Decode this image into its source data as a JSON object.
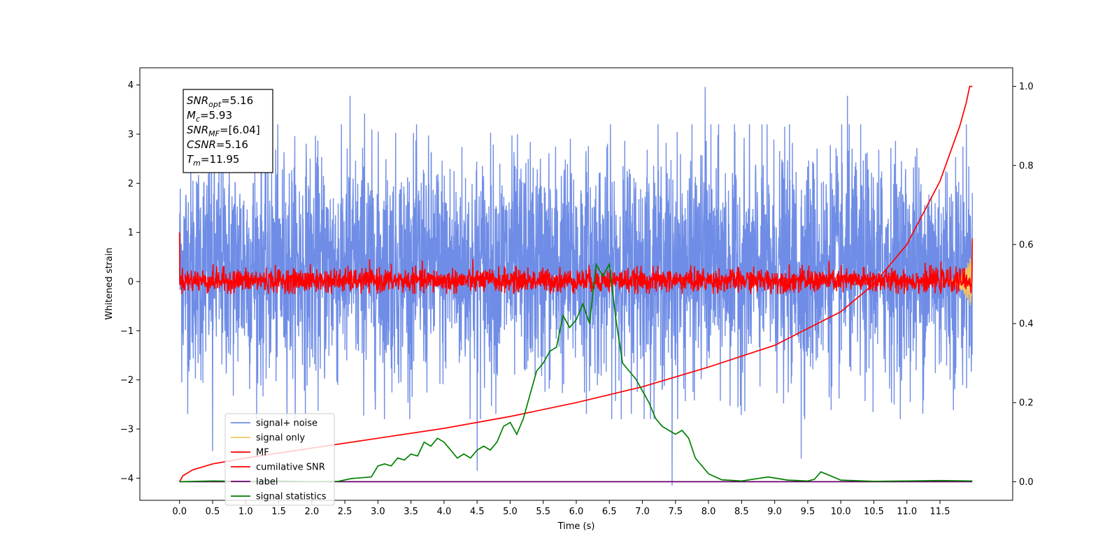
{
  "chart_data": {
    "type": "line",
    "title": "",
    "xlabel": "Time (s)",
    "ylabel": "Whitened strain",
    "xlim": [
      -0.6,
      12.6
    ],
    "ylim_left": [
      -4.45,
      4.35
    ],
    "ylim_right": [
      -0.047,
      1.047
    ],
    "x_ticks": [
      0.0,
      0.5,
      1.0,
      1.5,
      2.0,
      2.5,
      3.0,
      3.5,
      4.0,
      4.5,
      5.0,
      5.5,
      6.0,
      6.5,
      7.0,
      7.5,
      8.0,
      8.5,
      9.0,
      9.5,
      10.0,
      10.5,
      11.0,
      11.5
    ],
    "x_tick_labels": [
      "0.0",
      "0.5",
      "1.0",
      "1.5",
      "2.0",
      "2.5",
      "3.0",
      "3.5",
      "4.0",
      "4.5",
      "5.0",
      "5.5",
      "6.0",
      "6.5",
      "7.0",
      "7.5",
      "8.0",
      "8.5",
      "9.0",
      "9.5",
      "10.0",
      "10.5",
      "11.0",
      "11.5"
    ],
    "y_left_ticks": [
      -4,
      -3,
      -2,
      -1,
      0,
      1,
      2,
      3,
      4
    ],
    "y_left_tick_labels": [
      "−4",
      "−3",
      "−2",
      "−1",
      "0",
      "1",
      "2",
      "3",
      "4"
    ],
    "y_right_ticks": [
      0.0,
      0.2,
      0.4,
      0.6,
      0.8,
      1.0
    ],
    "y_right_tick_labels": [
      "0.0",
      "0.2",
      "0.4",
      "0.6",
      "0.8",
      "1.0"
    ],
    "legend_position": "bottom-left",
    "stats_box": {
      "lines": [
        {
          "sym": "SNR",
          "sub": "opt",
          "val": "=5.16"
        },
        {
          "sym": "M",
          "sub": "c",
          "val": "=5.93"
        },
        {
          "sym": "SNR",
          "sub": "MF",
          "val": "=[6.04]"
        },
        {
          "sym": "CSNR",
          "sub": "",
          "val": "=5.16"
        },
        {
          "sym": "T",
          "sub": "m",
          "val": "=11.95"
        }
      ]
    },
    "series": [
      {
        "name": "signal+ noise",
        "axis": "left",
        "color": "#6f8de6",
        "kind": "noise",
        "x_range": [
          0.0,
          11.99
        ],
        "mean": 0.0,
        "typical_envelope": [
          -2.2,
          2.6
        ],
        "peaks": [
          {
            "x": 2.58,
            "y": 3.78
          },
          {
            "x": 2.8,
            "y": 3.42
          },
          {
            "x": 7.95,
            "y": 3.96
          },
          {
            "x": 10.1,
            "y": 3.78
          },
          {
            "x": 0.5,
            "y": -3.45
          },
          {
            "x": 4.5,
            "y": -3.85
          },
          {
            "x": 7.45,
            "y": -4.15
          },
          {
            "x": 9.4,
            "y": -3.6
          }
        ]
      },
      {
        "name": "signal only",
        "axis": "left",
        "color": "#f5c462",
        "kind": "chirp",
        "x_range": [
          11.5,
          11.99
        ],
        "amplitude_end": 0.6
      },
      {
        "name": "MF",
        "axis": "left",
        "color": "#ff0000",
        "kind": "noise",
        "x_range": [
          0.0,
          11.99
        ],
        "mean": 0.0,
        "typical_envelope": [
          -0.25,
          0.42
        ],
        "endpoints": {
          "start": 1.0,
          "end": 0.88
        }
      },
      {
        "name": "cumilative SNR",
        "axis": "right",
        "color": "#ff0000",
        "kind": "curve",
        "x": [
          0.0,
          0.05,
          0.2,
          0.5,
          1.0,
          2.0,
          3.0,
          4.0,
          5.0,
          6.0,
          7.0,
          8.0,
          9.0,
          10.0,
          10.5,
          11.0,
          11.5,
          11.8,
          11.9,
          11.95,
          11.99
        ],
        "y": [
          0.0,
          0.015,
          0.03,
          0.045,
          0.06,
          0.085,
          0.11,
          0.135,
          0.165,
          0.2,
          0.24,
          0.29,
          0.345,
          0.43,
          0.5,
          0.6,
          0.76,
          0.9,
          0.96,
          1.0,
          1.0
        ]
      },
      {
        "name": "label",
        "axis": "right",
        "color": "#6a006a",
        "kind": "curve",
        "x": [
          0.0,
          11.99
        ],
        "y": [
          0.0,
          0.0
        ]
      },
      {
        "name": "signal statistics",
        "axis": "right",
        "color": "#008000",
        "kind": "curve",
        "x": [
          0.0,
          0.5,
          1.0,
          1.5,
          2.0,
          2.4,
          2.6,
          2.9,
          3.0,
          3.1,
          3.2,
          3.3,
          3.4,
          3.5,
          3.6,
          3.7,
          3.8,
          3.9,
          4.0,
          4.1,
          4.2,
          4.3,
          4.4,
          4.5,
          4.6,
          4.7,
          4.8,
          4.9,
          5.0,
          5.1,
          5.2,
          5.3,
          5.4,
          5.5,
          5.6,
          5.7,
          5.8,
          5.9,
          6.0,
          6.1,
          6.2,
          6.3,
          6.4,
          6.5,
          6.6,
          6.7,
          6.8,
          6.9,
          7.0,
          7.1,
          7.2,
          7.3,
          7.4,
          7.5,
          7.6,
          7.7,
          7.8,
          8.0,
          8.2,
          8.5,
          8.9,
          9.2,
          9.5,
          9.6,
          9.7,
          9.8,
          10.0,
          10.5,
          11.0,
          11.5,
          11.99
        ],
        "y": [
          0.0,
          0.002,
          0.001,
          0.002,
          0.0,
          0.001,
          0.008,
          0.012,
          0.04,
          0.045,
          0.04,
          0.06,
          0.055,
          0.07,
          0.065,
          0.1,
          0.09,
          0.11,
          0.1,
          0.08,
          0.06,
          0.07,
          0.06,
          0.08,
          0.09,
          0.08,
          0.1,
          0.14,
          0.15,
          0.12,
          0.16,
          0.22,
          0.28,
          0.3,
          0.33,
          0.34,
          0.42,
          0.39,
          0.41,
          0.45,
          0.4,
          0.55,
          0.52,
          0.55,
          0.41,
          0.3,
          0.28,
          0.26,
          0.23,
          0.2,
          0.16,
          0.14,
          0.13,
          0.12,
          0.13,
          0.11,
          0.06,
          0.02,
          0.005,
          0.002,
          0.012,
          0.004,
          0.002,
          0.006,
          0.025,
          0.018,
          0.004,
          0.001,
          0.002,
          0.003,
          0.002
        ]
      }
    ]
  }
}
